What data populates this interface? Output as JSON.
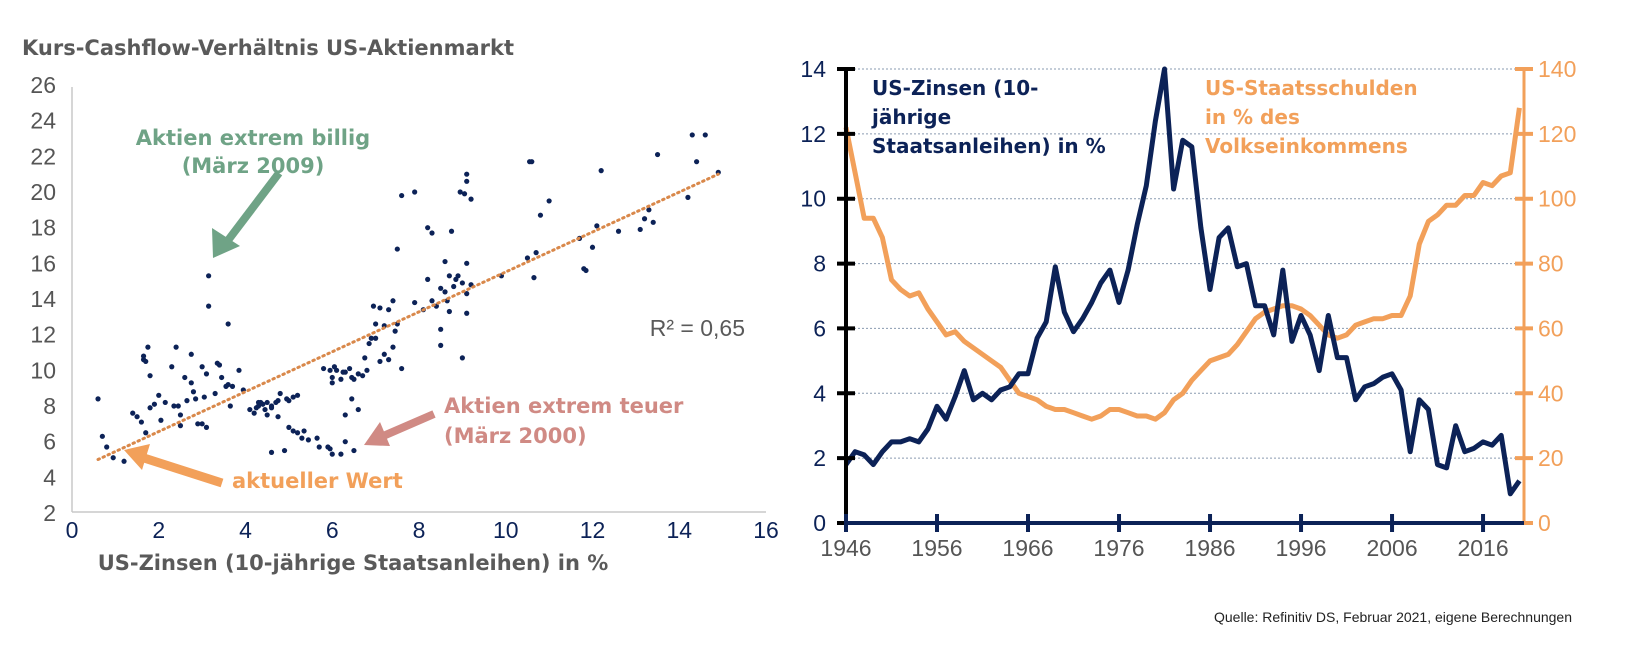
{
  "chart_data": [
    {
      "type": "scatter",
      "title": "Kurs-Cashflow-Verhältnis US-Aktienmarkt",
      "xlabel": "US-Zinsen (10-jährige Staatsanleihen) in %",
      "ylabel": "",
      "xlim": [
        0,
        16
      ],
      "ylim": [
        2,
        26
      ],
      "xticks": [
        "0",
        "2",
        "4",
        "6",
        "8",
        "10",
        "12",
        "14",
        "16"
      ],
      "yticks": [
        "2",
        "4",
        "6",
        "8",
        "10",
        "12",
        "14",
        "16",
        "18",
        "20",
        "22",
        "24",
        "26"
      ],
      "grid": false,
      "trendline": {
        "type": "linear",
        "from": [
          0.6,
          5.0
        ],
        "to": [
          14.9,
          21.0
        ],
        "label": "R² = 0,65"
      },
      "annotations": [
        {
          "text": [
            "Aktien extrem billig",
            "(März 2009)"
          ],
          "color": "#6fa386",
          "target": [
            3.3,
            16.2
          ]
        },
        {
          "text": [
            "Aktien extrem teuer",
            "(März 2000)"
          ],
          "color": "#d08a84",
          "target": [
            6.8,
            6.0
          ]
        },
        {
          "text": [
            "aktueller Wert"
          ],
          "color": "#f2a05a",
          "target": [
            1.2,
            5.0
          ]
        }
      ],
      "points": [
        [
          0.6,
          8.4
        ],
        [
          0.7,
          6.3
        ],
        [
          0.8,
          5.7
        ],
        [
          0.95,
          5.1
        ],
        [
          1.2,
          4.9
        ],
        [
          1.4,
          7.6
        ],
        [
          1.5,
          7.4
        ],
        [
          1.6,
          7.1
        ],
        [
          1.65,
          10.6
        ],
        [
          1.65,
          10.8
        ],
        [
          1.7,
          10.5
        ],
        [
          1.75,
          11.3
        ],
        [
          1.8,
          9.7
        ],
        [
          1.7,
          6.5
        ],
        [
          1.8,
          7.9
        ],
        [
          1.9,
          8.1
        ],
        [
          2.0,
          8.6
        ],
        [
          2.05,
          7.2
        ],
        [
          2.15,
          8.2
        ],
        [
          2.3,
          10.2
        ],
        [
          2.35,
          8.0
        ],
        [
          2.4,
          11.3
        ],
        [
          2.45,
          8.0
        ],
        [
          2.5,
          6.9
        ],
        [
          2.5,
          7.5
        ],
        [
          2.6,
          9.6
        ],
        [
          2.65,
          8.3
        ],
        [
          2.75,
          9.3
        ],
        [
          2.8,
          8.8
        ],
        [
          2.85,
          8.4
        ],
        [
          2.75,
          10.9
        ],
        [
          2.9,
          7.0
        ],
        [
          3.0,
          10.2
        ],
        [
          3.05,
          8.5
        ],
        [
          3.1,
          9.8
        ],
        [
          3.1,
          6.8
        ],
        [
          3.0,
          7.0
        ],
        [
          3.15,
          15.3
        ],
        [
          3.15,
          13.6
        ],
        [
          3.35,
          10.4
        ],
        [
          3.4,
          10.3
        ],
        [
          3.45,
          9.6
        ],
        [
          3.55,
          9.1
        ],
        [
          3.6,
          9.2
        ],
        [
          3.65,
          8.0
        ],
        [
          3.7,
          9.1
        ],
        [
          3.85,
          10.0
        ],
        [
          3.3,
          8.7
        ],
        [
          3.6,
          12.6
        ],
        [
          3.95,
          8.9
        ],
        [
          4.1,
          7.8
        ],
        [
          4.2,
          7.6
        ],
        [
          4.25,
          7.9
        ],
        [
          4.3,
          8.2
        ],
        [
          4.35,
          8.2
        ],
        [
          4.4,
          8.1
        ],
        [
          4.5,
          8.2
        ],
        [
          4.6,
          7.9
        ],
        [
          4.7,
          8.2
        ],
        [
          4.75,
          8.3
        ],
        [
          4.3,
          8.0
        ],
        [
          4.45,
          7.8
        ],
        [
          4.6,
          8.0
        ],
        [
          4.75,
          7.4
        ],
        [
          4.8,
          8.7
        ],
        [
          4.95,
          8.4
        ],
        [
          5.0,
          8.3
        ],
        [
          5.1,
          8.5
        ],
        [
          5.2,
          8.6
        ],
        [
          4.5,
          7.5
        ],
        [
          4.6,
          5.4
        ],
        [
          4.9,
          5.5
        ],
        [
          5.0,
          6.8
        ],
        [
          5.2,
          6.5
        ],
        [
          5.1,
          6.6
        ],
        [
          5.3,
          6.2
        ],
        [
          5.35,
          6.6
        ],
        [
          5.45,
          6.1
        ],
        [
          5.65,
          6.2
        ],
        [
          5.7,
          5.7
        ],
        [
          5.9,
          5.7
        ],
        [
          5.95,
          5.6
        ],
        [
          6.0,
          5.3
        ],
        [
          6.2,
          5.3
        ],
        [
          6.5,
          5.5
        ],
        [
          6.3,
          6.0
        ],
        [
          5.8,
          10.1
        ],
        [
          5.95,
          10.0
        ],
        [
          6.0,
          9.6
        ],
        [
          6.0,
          9.3
        ],
        [
          6.05,
          10.2
        ],
        [
          6.1,
          10.0
        ],
        [
          6.2,
          9.5
        ],
        [
          6.25,
          9.9
        ],
        [
          6.3,
          9.9
        ],
        [
          6.4,
          10.1
        ],
        [
          6.45,
          9.6
        ],
        [
          6.5,
          9.5
        ],
        [
          6.6,
          9.8
        ],
        [
          6.7,
          9.7
        ],
        [
          6.75,
          10.7
        ],
        [
          6.8,
          10.0
        ],
        [
          6.3,
          7.5
        ],
        [
          6.45,
          8.4
        ],
        [
          6.6,
          7.8
        ],
        [
          6.85,
          11.5
        ],
        [
          6.9,
          11.8
        ],
        [
          6.95,
          13.6
        ],
        [
          7.0,
          12.6
        ],
        [
          7.1,
          13.5
        ],
        [
          7.2,
          12.5
        ],
        [
          7.3,
          13.4
        ],
        [
          7.4,
          13.9
        ],
        [
          7.45,
          12.2
        ],
        [
          7.5,
          12.6
        ],
        [
          7.6,
          10.1
        ],
        [
          7.3,
          10.6
        ],
        [
          7.2,
          10.9
        ],
        [
          7.0,
          11.8
        ],
        [
          7.1,
          10.5
        ],
        [
          7.4,
          11.3
        ],
        [
          7.5,
          16.8
        ],
        [
          7.6,
          19.8
        ],
        [
          7.9,
          20.0
        ],
        [
          7.9,
          13.8
        ],
        [
          8.1,
          13.4
        ],
        [
          8.2,
          18.0
        ],
        [
          8.3,
          17.7
        ],
        [
          8.4,
          13.6
        ],
        [
          8.5,
          14.6
        ],
        [
          8.6,
          14.4
        ],
        [
          8.7,
          15.3
        ],
        [
          8.8,
          14.7
        ],
        [
          8.85,
          15.1
        ],
        [
          8.5,
          12.3
        ],
        [
          8.65,
          13.9
        ],
        [
          8.7,
          13.3
        ],
        [
          8.6,
          16.1
        ],
        [
          8.75,
          17.8
        ],
        [
          8.9,
          15.3
        ],
        [
          9.0,
          14.9
        ],
        [
          9.1,
          14.3
        ],
        [
          9.1,
          16.0
        ],
        [
          8.2,
          15.1
        ],
        [
          8.3,
          13.9
        ],
        [
          8.5,
          11.4
        ],
        [
          8.95,
          20.0
        ],
        [
          9.05,
          19.9
        ],
        [
          9.1,
          21.0
        ],
        [
          9.1,
          20.6
        ],
        [
          9.2,
          19.6
        ],
        [
          9.0,
          10.7
        ],
        [
          9.1,
          13.2
        ],
        [
          9.2,
          14.8
        ],
        [
          9.9,
          15.3
        ],
        [
          10.5,
          16.3
        ],
        [
          10.55,
          21.7
        ],
        [
          10.6,
          21.7
        ],
        [
          10.65,
          15.2
        ],
        [
          10.7,
          16.6
        ],
        [
          10.8,
          18.7
        ],
        [
          11.0,
          19.5
        ],
        [
          11.7,
          17.4
        ],
        [
          11.8,
          15.7
        ],
        [
          11.85,
          15.6
        ],
        [
          12.0,
          16.9
        ],
        [
          12.1,
          18.1
        ],
        [
          12.2,
          21.2
        ],
        [
          12.6,
          17.8
        ],
        [
          13.1,
          17.9
        ],
        [
          13.2,
          18.5
        ],
        [
          13.3,
          19.0
        ],
        [
          13.4,
          18.3
        ],
        [
          13.5,
          22.1
        ],
        [
          14.2,
          19.7
        ],
        [
          14.3,
          23.2
        ],
        [
          14.4,
          21.7
        ],
        [
          14.6,
          23.2
        ],
        [
          14.9,
          21.1
        ]
      ]
    },
    {
      "type": "line",
      "xlim": [
        1946,
        2020
      ],
      "xticks": [
        "1946",
        "1956",
        "1966",
        "1976",
        "1986",
        "1996",
        "2006",
        "2016"
      ],
      "grid": true,
      "y_left": {
        "ylim": [
          0,
          14
        ],
        "ticks": [
          "0",
          "2",
          "4",
          "6",
          "8",
          "10",
          "12",
          "14"
        ],
        "color": "#0c2257"
      },
      "y_right": {
        "ylim": [
          0,
          140
        ],
        "ticks": [
          "0",
          "20",
          "40",
          "60",
          "80",
          "100",
          "120",
          "140"
        ],
        "color": "#f2a05a"
      },
      "series": [
        {
          "name": "US-Zinsen (10-jährige Staatsanleihen) in %",
          "legend_lines": [
            "US-Zinsen (10-",
            "jährige",
            "Staatsanleihen) in %"
          ],
          "axis": "left",
          "color": "#0c2257",
          "x": [
            1946,
            1947,
            1948,
            1949,
            1950,
            1951,
            1952,
            1953,
            1954,
            1955,
            1956,
            1957,
            1958,
            1959,
            1960,
            1961,
            1962,
            1963,
            1964,
            1965,
            1966,
            1967,
            1968,
            1969,
            1970,
            1971,
            1972,
            1973,
            1974,
            1975,
            1976,
            1977,
            1978,
            1979,
            1980,
            1981,
            1982,
            1983,
            1984,
            1985,
            1986,
            1987,
            1988,
            1989,
            1990,
            1991,
            1992,
            1993,
            1994,
            1995,
            1996,
            1997,
            1998,
            1999,
            2000,
            2001,
            2002,
            2003,
            2004,
            2005,
            2006,
            2007,
            2008,
            2009,
            2010,
            2011,
            2012,
            2013,
            2014,
            2015,
            2016,
            2017,
            2018,
            2019,
            2020
          ],
          "values": [
            1.8,
            2.2,
            2.1,
            1.8,
            2.2,
            2.5,
            2.5,
            2.6,
            2.5,
            2.9,
            3.6,
            3.2,
            3.9,
            4.7,
            3.8,
            4.0,
            3.8,
            4.1,
            4.2,
            4.6,
            4.6,
            5.7,
            6.2,
            7.9,
            6.5,
            5.9,
            6.3,
            6.8,
            7.4,
            7.8,
            6.8,
            7.8,
            9.2,
            10.4,
            12.4,
            14.0,
            10.3,
            11.8,
            11.6,
            9.1,
            7.2,
            8.8,
            9.1,
            7.9,
            8.0,
            6.7,
            6.7,
            5.8,
            7.8,
            5.6,
            6.4,
            5.8,
            4.7,
            6.4,
            5.1,
            5.1,
            3.8,
            4.2,
            4.3,
            4.5,
            4.6,
            4.1,
            2.2,
            3.8,
            3.5,
            1.8,
            1.7,
            3.0,
            2.2,
            2.3,
            2.5,
            2.4,
            2.7,
            0.9,
            1.3
          ]
        },
        {
          "name": "US-Staatsschulden in % des Volkseinkommens",
          "legend_lines": [
            "US-Staatsschulden",
            "in % des",
            "Volkseinkommens"
          ],
          "axis": "right",
          "color": "#f2a05a",
          "x": [
            1946,
            1947,
            1948,
            1949,
            1950,
            1951,
            1952,
            1953,
            1954,
            1955,
            1956,
            1957,
            1958,
            1959,
            1960,
            1961,
            1962,
            1963,
            1964,
            1965,
            1966,
            1967,
            1968,
            1969,
            1970,
            1971,
            1972,
            1973,
            1974,
            1975,
            1976,
            1977,
            1978,
            1979,
            1980,
            1981,
            1982,
            1983,
            1984,
            1985,
            1986,
            1987,
            1988,
            1989,
            1990,
            1991,
            1992,
            1993,
            1994,
            1995,
            1996,
            1997,
            1998,
            1999,
            2000,
            2001,
            2002,
            2003,
            2004,
            2005,
            2006,
            2007,
            2008,
            2009,
            2010,
            2011,
            2012,
            2013,
            2014,
            2015,
            2016,
            2017,
            2018,
            2019,
            2020
          ],
          "values": [
            122,
            108,
            94,
            94,
            88,
            75,
            72,
            70,
            71,
            66,
            62,
            58,
            59,
            56,
            54,
            52,
            50,
            48,
            44,
            40,
            39,
            38,
            36,
            35,
            35,
            34,
            33,
            32,
            33,
            35,
            35,
            34,
            33,
            33,
            32,
            34,
            38,
            40,
            44,
            47,
            50,
            51,
            52,
            55,
            59,
            63,
            65,
            66,
            67,
            67,
            66,
            64,
            61,
            58,
            57,
            58,
            61,
            62,
            63,
            63,
            64,
            64,
            70,
            86,
            93,
            95,
            98,
            98,
            101,
            101,
            105,
            104,
            107,
            108,
            128
          ]
        }
      ]
    }
  ],
  "source": "Quelle: Refinitiv DS, Februar 2021, eigene Berechnungen"
}
